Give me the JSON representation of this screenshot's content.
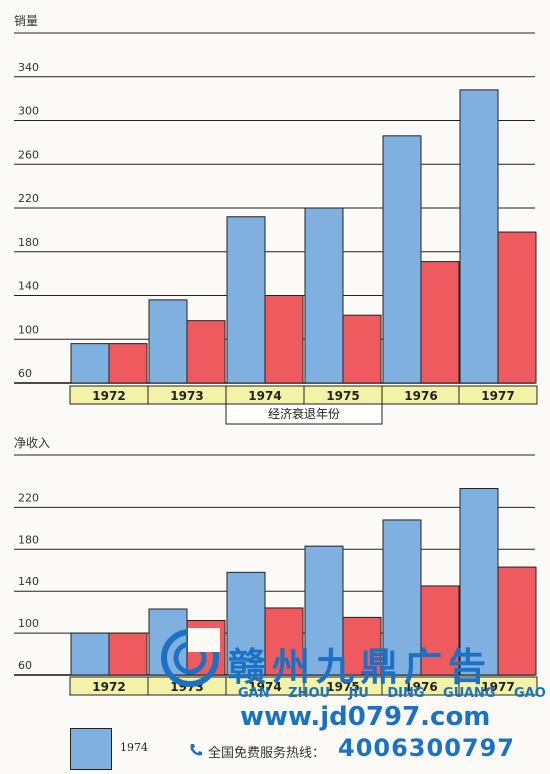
{
  "colors": {
    "blue": "#7fb0e0",
    "red": "#ee5a5e",
    "year_box": "#f3f3a8",
    "watermark": "#1b72c4"
  },
  "chart_data": [
    {
      "type": "bar",
      "ylabel": "销量",
      "yticks": [
        60,
        100,
        140,
        180,
        220,
        260,
        300,
        340
      ],
      "ylim": [
        60,
        380
      ],
      "categories": [
        "1972",
        "1973",
        "1974",
        "1975",
        "1976",
        "1977"
      ],
      "series": [
        {
          "values": [
            96,
            136,
            212,
            220,
            286,
            328
          ]
        },
        {
          "values": [
            96,
            117,
            140,
            122,
            171,
            198
          ]
        }
      ],
      "annotation": "经济衰退年份"
    },
    {
      "type": "bar",
      "ylabel": "净收入",
      "yticks": [
        60,
        100,
        140,
        180,
        220
      ],
      "ylim": [
        60,
        270
      ],
      "categories": [
        "1972",
        "1973",
        "1974",
        "1975",
        "1976",
        "1977"
      ],
      "series": [
        {
          "values": [
            100,
            123,
            158,
            183,
            208,
            238
          ]
        },
        {
          "values": [
            100,
            112,
            124,
            115,
            145,
            163
          ]
        }
      ]
    }
  ],
  "legend": {
    "label": "1974"
  },
  "watermark": {
    "name": "赣州九鼎广告",
    "pinyin": "GAN ZHOU JIU DING GUANG GAO",
    "url": "www.jd0797.com",
    "hotline_label": "全国免费服务热线：",
    "phone": "4006300797"
  }
}
